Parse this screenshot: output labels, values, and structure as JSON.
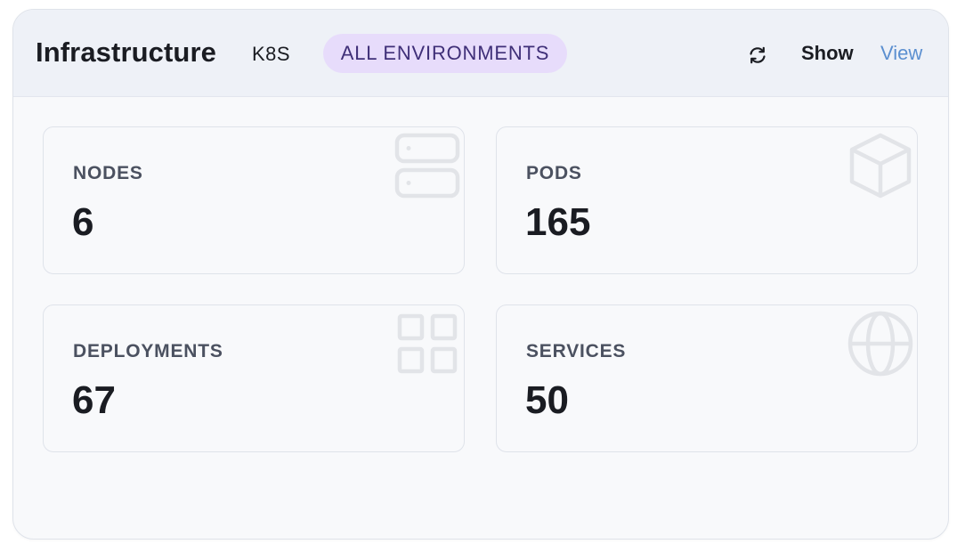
{
  "header": {
    "title": "Infrastructure",
    "tag": "K8S",
    "environment_badge": "ALL ENVIRONMENTS",
    "refresh_icon": "refresh-icon",
    "show_label": "Show",
    "view_label": "View"
  },
  "stats": [
    {
      "label": "NODES",
      "value": "6",
      "icon": "server-icon"
    },
    {
      "label": "PODS",
      "value": "165",
      "icon": "cube-icon"
    },
    {
      "label": "DEPLOYMENTS",
      "value": "67",
      "icon": "grid-icon"
    },
    {
      "label": "SERVICES",
      "value": "50",
      "icon": "globe-icon"
    }
  ],
  "colors": {
    "badge_bg": "#e7dcfb",
    "badge_text": "#3f2f78",
    "link": "#5b8fd0",
    "icon_watermark": "#e2e4e8"
  }
}
